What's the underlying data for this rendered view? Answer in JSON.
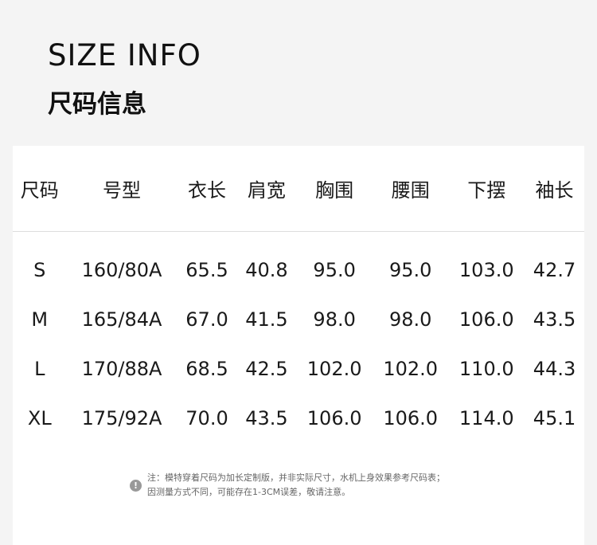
{
  "title_en": "SIZE INFO",
  "title_cn": "尺码信息",
  "table": {
    "headers": [
      "尺码",
      "号型",
      "衣长",
      "肩宽",
      "胸围",
      "腰围",
      "下摆",
      "袖长"
    ],
    "rows": [
      [
        "S",
        "160/80A",
        "65.5",
        "40.8",
        "95.0",
        "95.0",
        "103.0",
        "42.7"
      ],
      [
        "M",
        "165/84A",
        "67.0",
        "41.5",
        "98.0",
        "98.0",
        "106.0",
        "43.5"
      ],
      [
        "L",
        "170/88A",
        "68.5",
        "42.5",
        "102.0",
        "102.0",
        "110.0",
        "44.3"
      ],
      [
        "XL",
        "175/92A",
        "70.0",
        "43.5",
        "106.0",
        "106.0",
        "114.0",
        "45.1"
      ]
    ]
  },
  "note": {
    "icon": "exclamation-icon",
    "line1": "注：模特穿着尺码为加长定制版，并非实际尺寸，水机上身效果参考尺码表；",
    "line2": "因测量方式不同，可能存在1-3CM误差，敬请注意。"
  }
}
